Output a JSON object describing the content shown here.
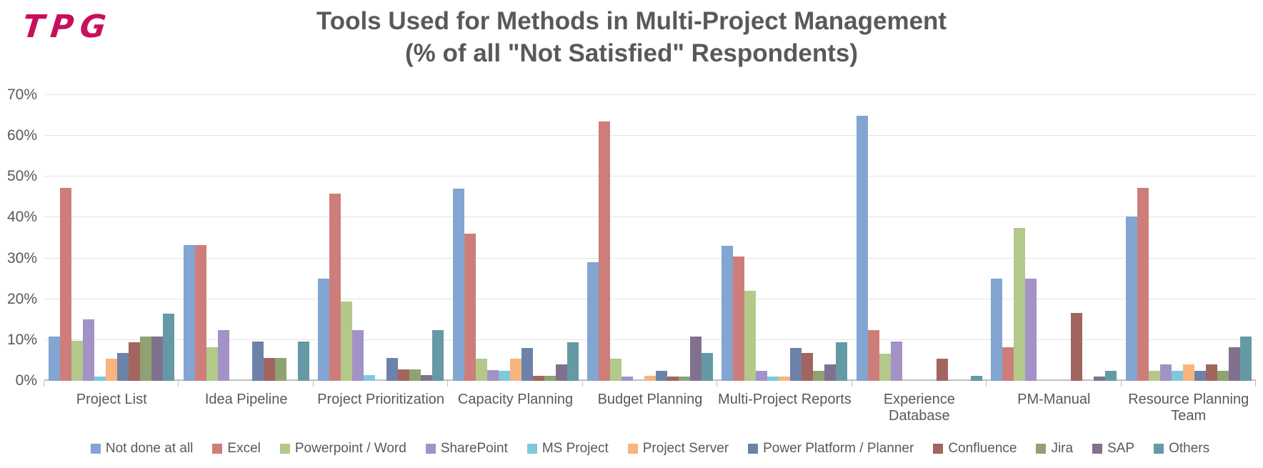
{
  "logo": {
    "text": "TPG",
    "color": "#C7105C"
  },
  "title": {
    "line1": "Tools Used for Methods in Multi-Project Management",
    "line2": "(% of all \"Not Satisfied\" Respondents)"
  },
  "chart_data": {
    "type": "bar",
    "title": "Tools Used for Methods in Multi-Project Management (% of all \"Not Satisfied\" Respondents)",
    "categories": [
      "Project List",
      "Idea Pipeline",
      "Project Prioritization",
      "Capacity Planning",
      "Budget Planning",
      "Multi-Project Reports",
      "Experience Database",
      "PM-Manual",
      "Resource Planning Team"
    ],
    "categories_display": [
      "Project List",
      "Idea Pipeline",
      "Project Prioritization",
      "Capacity Planning",
      "Budget Planning",
      "Multi-Project Reports",
      "Experience Database",
      "PM-Manual",
      "Resource Planning\nTeam"
    ],
    "yticks": [
      "0%",
      "10%",
      "20%",
      "30%",
      "40%",
      "50%",
      "60%",
      "70%"
    ],
    "ylim": [
      0,
      70
    ],
    "grid": true,
    "legend_position": "bottom",
    "series": [
      {
        "name": "Not done at all",
        "color": "#82A5D1",
        "values": [
          10.9,
          33.3,
          25.0,
          47.1,
          29.0,
          33.1,
          65.0,
          25.0,
          40.3
        ]
      },
      {
        "name": "Excel",
        "color": "#CD7E7B",
        "values": [
          47.3,
          33.3,
          45.8,
          36.0,
          63.6,
          30.5,
          12.5,
          8.2,
          47.2
        ]
      },
      {
        "name": "Powerpoint / Word",
        "color": "#B2C98A",
        "values": [
          9.8,
          8.3,
          19.4,
          5.5,
          5.5,
          22.0,
          6.7,
          37.4,
          2.5
        ]
      },
      {
        "name": "SharePoint",
        "color": "#A292C6",
        "values": [
          15.0,
          12.5,
          12.5,
          2.6,
          1.1,
          2.5,
          9.7,
          25.0,
          4.1
        ]
      },
      {
        "name": "MS Project",
        "color": "#7FC8DC",
        "values": [
          1.1,
          0,
          1.4,
          2.5,
          0,
          1.1,
          0,
          0,
          2.5
        ]
      },
      {
        "name": "Project Server",
        "color": "#F7B47F",
        "values": [
          5.5,
          0,
          0,
          5.5,
          1.2,
          1.1,
          0,
          0,
          4.1
        ]
      },
      {
        "name": "Power Platform / Planner",
        "color": "#6D82A8",
        "values": [
          6.8,
          9.7,
          5.6,
          8.1,
          2.5,
          8.1,
          0,
          0,
          2.5
        ]
      },
      {
        "name": "Confluence",
        "color": "#A2655F",
        "values": [
          9.5,
          5.6,
          2.8,
          1.2,
          1.1,
          6.8,
          5.5,
          16.6,
          4.1
        ]
      },
      {
        "name": "Jira",
        "color": "#8EA371",
        "values": [
          10.9,
          5.6,
          2.8,
          1.2,
          1.1,
          2.5,
          0,
          0,
          2.5
        ]
      },
      {
        "name": "SAP",
        "color": "#81718F",
        "values": [
          10.9,
          0,
          1.4,
          4.1,
          10.9,
          4.1,
          0,
          1.1,
          8.2
        ]
      },
      {
        "name": "Others",
        "color": "#6699A6",
        "values": [
          16.4,
          9.7,
          12.5,
          9.5,
          6.8,
          9.5,
          1.2,
          2.5,
          10.9
        ]
      }
    ]
  }
}
